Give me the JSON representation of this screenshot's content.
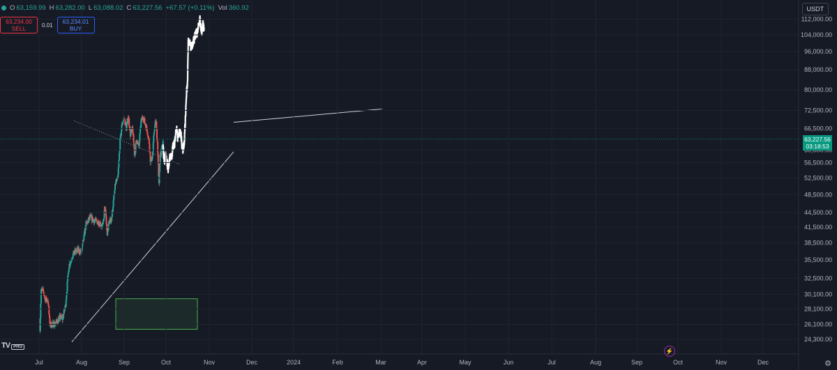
{
  "header": {
    "open_label": "O",
    "open": "63,159.99",
    "high_label": "H",
    "high": "63,282.00",
    "low_label": "L",
    "low": "63,088.02",
    "close_label": "C",
    "close": "63,227.56",
    "change": "+67.57 (+0.11%)",
    "vol_label": "Vol",
    "vol": "360.92"
  },
  "trade": {
    "sell_price": "63,234.00",
    "sell_label": "SELL",
    "spread": "0.01",
    "buy_price": "63,234.01",
    "buy_label": "BUY"
  },
  "currency": "USDT",
  "price_tag": {
    "price": "63,227.56",
    "countdown": "03:18:53"
  },
  "logo": {
    "text": "TV",
    "badge": "PRO"
  },
  "icons": {
    "settings": "settings-gear-icon",
    "bolt": "lightning-icon"
  },
  "colors": {
    "background": "#161a25",
    "up": "#26a69a",
    "down": "#ef5350",
    "projection": "#ffffff",
    "box": "#4caf50",
    "tag": "#089981"
  },
  "chart_data": {
    "type": "candlestick",
    "x_ticks": [
      "Jul",
      "Aug",
      "Sep",
      "Oct",
      "Nov",
      "Dec",
      "2024",
      "Feb",
      "Mar",
      "Apr",
      "May",
      "Jun",
      "Jul",
      "Aug",
      "Sep",
      "Oct",
      "Nov",
      "Dec"
    ],
    "y_ticks": [
      24300,
      26100,
      28100,
      30100,
      32500,
      35500,
      38500,
      41500,
      44500,
      48500,
      52500,
      56500,
      60000,
      66500,
      72500,
      80000,
      88000,
      96000,
      104000,
      112000
    ],
    "y_tick_labels": [
      "24,300.00",
      "26,100.00",
      "28,100.00",
      "30,100.00",
      "32,500.00",
      "35,500.00",
      "38,500.00",
      "41,500.00",
      "44,500.00",
      "48,500.00",
      "52,500.00",
      "56,500.00",
      "60,000.00",
      "66,500.00",
      "72,500.00",
      "80,000.00",
      "88,000.00",
      "96,000.00",
      "104,000.00",
      "112,000.00"
    ],
    "log_scale": true,
    "current_price": 63227.56,
    "price_path": [
      {
        "t": 0,
        "p": 26500
      },
      {
        "t": 0.02,
        "p": 25500
      },
      {
        "t": 0.05,
        "p": 30800
      },
      {
        "t": 0.1,
        "p": 30500
      },
      {
        "t": 0.15,
        "p": 29400
      },
      {
        "t": 0.21,
        "p": 29300
      },
      {
        "t": 0.25,
        "p": 26200
      },
      {
        "t": 0.3,
        "p": 26000
      },
      {
        "t": 0.4,
        "p": 26300
      },
      {
        "t": 0.5,
        "p": 27000
      },
      {
        "t": 0.55,
        "p": 26800
      },
      {
        "t": 0.62,
        "p": 28500
      },
      {
        "t": 0.7,
        "p": 34500
      },
      {
        "t": 0.8,
        "p": 36500
      },
      {
        "t": 0.9,
        "p": 37200
      },
      {
        "t": 1.0,
        "p": 36900
      },
      {
        "t": 1.1,
        "p": 42000
      },
      {
        "t": 1.2,
        "p": 43500
      },
      {
        "t": 1.3,
        "p": 42800
      },
      {
        "t": 1.4,
        "p": 42500
      },
      {
        "t": 1.5,
        "p": 41700
      },
      {
        "t": 1.55,
        "p": 46000
      },
      {
        "t": 1.6,
        "p": 40000
      },
      {
        "t": 1.65,
        "p": 42800
      },
      {
        "t": 1.7,
        "p": 43000
      },
      {
        "t": 1.8,
        "p": 51500
      },
      {
        "t": 1.85,
        "p": 52000
      },
      {
        "t": 1.9,
        "p": 62000
      },
      {
        "t": 1.95,
        "p": 68000
      },
      {
        "t": 2.0,
        "p": 70000
      },
      {
        "t": 2.05,
        "p": 66500
      },
      {
        "t": 2.1,
        "p": 70500
      },
      {
        "t": 2.15,
        "p": 64500
      },
      {
        "t": 2.2,
        "p": 66500
      },
      {
        "t": 2.25,
        "p": 58500
      },
      {
        "t": 2.3,
        "p": 63500
      },
      {
        "t": 2.35,
        "p": 60500
      },
      {
        "t": 2.4,
        "p": 68500
      },
      {
        "t": 2.45,
        "p": 70500
      },
      {
        "t": 2.5,
        "p": 68000
      },
      {
        "t": 2.55,
        "p": 66000
      },
      {
        "t": 2.6,
        "p": 62000
      },
      {
        "t": 2.63,
        "p": 56500
      },
      {
        "t": 2.68,
        "p": 58500
      },
      {
        "t": 2.72,
        "p": 66500
      },
      {
        "t": 2.76,
        "p": 69000
      },
      {
        "t": 2.8,
        "p": 61000
      },
      {
        "t": 2.83,
        "p": 50000
      },
      {
        "t": 2.86,
        "p": 59000
      },
      {
        "t": 2.9,
        "p": 60000
      },
      {
        "t": 2.93,
        "p": 62500
      }
    ],
    "projection_path": [
      {
        "t": 2.93,
        "p": 61000
      },
      {
        "t": 2.95,
        "p": 58000
      },
      {
        "t": 2.98,
        "p": 56800
      },
      {
        "t": 3.0,
        "p": 59000
      },
      {
        "t": 3.02,
        "p": 57000
      },
      {
        "t": 3.05,
        "p": 55000
      },
      {
        "t": 3.08,
        "p": 56500
      },
      {
        "t": 3.1,
        "p": 59000
      },
      {
        "t": 3.13,
        "p": 58000
      },
      {
        "t": 3.16,
        "p": 61000
      },
      {
        "t": 3.2,
        "p": 62000
      },
      {
        "t": 3.24,
        "p": 67000
      },
      {
        "t": 3.27,
        "p": 63000
      },
      {
        "t": 3.31,
        "p": 65500
      },
      {
        "t": 3.35,
        "p": 64500
      },
      {
        "t": 3.38,
        "p": 60000
      },
      {
        "t": 3.42,
        "p": 61500
      },
      {
        "t": 3.44,
        "p": 67000
      },
      {
        "t": 3.46,
        "p": 73000
      },
      {
        "t": 3.48,
        "p": 80000
      },
      {
        "t": 3.5,
        "p": 84000
      },
      {
        "t": 3.51,
        "p": 98000
      },
      {
        "t": 3.52,
        "p": 101000
      },
      {
        "t": 3.58,
        "p": 98000
      },
      {
        "t": 3.64,
        "p": 101500
      },
      {
        "t": 3.7,
        "p": 104500
      },
      {
        "t": 3.74,
        "p": 106000
      },
      {
        "t": 3.78,
        "p": 113500
      },
      {
        "t": 3.82,
        "p": 104500
      },
      {
        "t": 3.86,
        "p": 110000
      },
      {
        "t": 3.88,
        "p": 108000
      }
    ],
    "trendlines": [
      {
        "name": "ascending-support",
        "from": {
          "month": "Aug",
          "p": 24000
        },
        "to": {
          "month": "Nov",
          "p": 59500
        }
      },
      {
        "name": "descending-resistance",
        "from": {
          "month": "Mar",
          "p": 73000
        },
        "to": {
          "month": "Nov",
          "p": 68500
        }
      },
      {
        "name": "local-downtrend-dotted",
        "from": {
          "month": "Jul",
          "p": 69000
        },
        "to": {
          "month": "Sep",
          "p": 56000
        }
      }
    ],
    "range_box": {
      "from": "Sep",
      "to": "Oct",
      "low": 25500,
      "high": 29500
    }
  }
}
